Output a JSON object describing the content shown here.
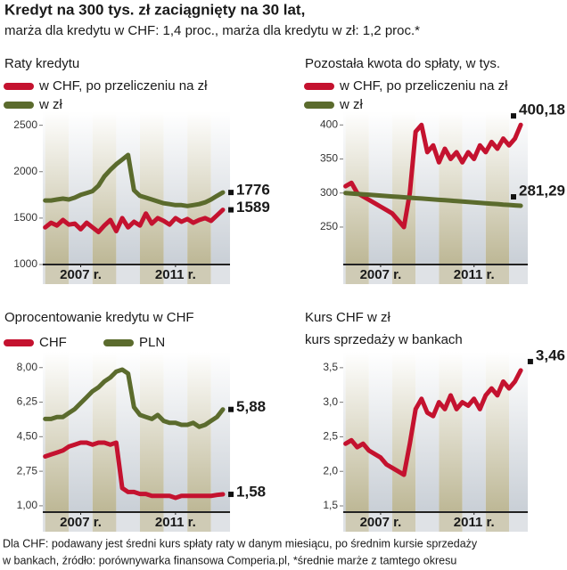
{
  "title": "Kredyt na 300 tys. zł zaciągnięty na 30 lat,",
  "subtitle": "marża dla kredytu w CHF: 1,4 proc., marża dla kredytu w zł: 1,2 proc.*",
  "footnote": [
    "Dla CHF: podawany jest średni kurs spłaty raty w danym miesiącu, po średnim kursie sprzedaży",
    "w bankach, źródło: porównywarka finansowa Comperia.pl, *średnie marże z tamtego okresu"
  ],
  "chart_data": [
    {
      "type": "line",
      "title": "Raty kredytu",
      "x": [
        2006,
        2006.25,
        2006.5,
        2006.75,
        2007,
        2007.25,
        2007.5,
        2007.75,
        2008,
        2008.25,
        2008.5,
        2008.75,
        2009,
        2009.25,
        2009.5,
        2009.75,
        2010,
        2010.25,
        2010.5,
        2010.75,
        2011,
        2011.25,
        2011.5,
        2011.75,
        2012,
        2012.25,
        2012.5,
        2012.75,
        2013,
        2013.25,
        2013.5
      ],
      "xlim": [
        2005.9,
        2013.8
      ],
      "xticks": [
        {
          "value": 2007.5,
          "label": "2007 r."
        },
        {
          "value": 2011.5,
          "label": "2011 r."
        }
      ],
      "ylim": [
        1000,
        2650
      ],
      "yticks": [
        1000,
        1500,
        2000,
        2500
      ],
      "series": [
        {
          "name": "w CHF, po przeliczeniu na zł",
          "color": "#c4122f",
          "values": [
            1400,
            1450,
            1420,
            1480,
            1430,
            1440,
            1380,
            1450,
            1400,
            1350,
            1420,
            1480,
            1360,
            1500,
            1400,
            1460,
            1420,
            1550,
            1440,
            1500,
            1470,
            1430,
            1500,
            1460,
            1490,
            1450,
            1480,
            1500,
            1470,
            1530,
            1589
          ]
        },
        {
          "name": "w zł",
          "color": "#5b6b2d",
          "values": [
            1690,
            1690,
            1700,
            1710,
            1700,
            1720,
            1750,
            1770,
            1790,
            1850,
            1950,
            2020,
            2080,
            2130,
            2180,
            1800,
            1740,
            1720,
            1700,
            1680,
            1660,
            1650,
            1640,
            1640,
            1630,
            1640,
            1650,
            1670,
            1700,
            1740,
            1776
          ]
        }
      ]
    },
    {
      "type": "line",
      "title": "Pozostała kwota do spłaty, w tys.",
      "x": [
        2006,
        2006.25,
        2006.5,
        2006.75,
        2007,
        2007.25,
        2007.5,
        2007.75,
        2008,
        2008.25,
        2008.5,
        2008.75,
        2009,
        2009.25,
        2009.5,
        2009.75,
        2010,
        2010.25,
        2010.5,
        2010.75,
        2011,
        2011.25,
        2011.5,
        2011.75,
        2012,
        2012.25,
        2012.5,
        2012.75,
        2013,
        2013.25,
        2013.5
      ],
      "xlim": [
        2005.9,
        2013.8
      ],
      "xticks": [
        {
          "value": 2007.5,
          "label": "2007 r."
        },
        {
          "value": 2011.5,
          "label": "2011 r."
        }
      ],
      "ylim": [
        195,
        420
      ],
      "yticks": [
        250,
        300,
        350,
        400
      ],
      "series": [
        {
          "name": "w CHF, po przeliczeniu na zł",
          "color": "#c4122f",
          "values": [
            310,
            315,
            300,
            295,
            290,
            285,
            280,
            275,
            270,
            260,
            250,
            300,
            390,
            400,
            360,
            370,
            345,
            365,
            350,
            360,
            345,
            360,
            350,
            370,
            360,
            375,
            365,
            380,
            370,
            380,
            400.18
          ],
          "value_labels": [
            null,
            null,
            null,
            null,
            null,
            null,
            null,
            null,
            null,
            null,
            null,
            null,
            null,
            null,
            null,
            null,
            null,
            null,
            null,
            null,
            null,
            null,
            null,
            null,
            null,
            null,
            null,
            null,
            null,
            null,
            "400,18"
          ]
        },
        {
          "name": "w zł",
          "color": "#5b6b2d",
          "values": [
            300,
            299.4,
            298.8,
            298.1,
            297.5,
            296.9,
            296.3,
            295.6,
            295,
            294.4,
            293.8,
            293.1,
            292.5,
            291.9,
            291.3,
            290.6,
            290,
            289.4,
            288.8,
            288.1,
            287.5,
            286.9,
            286.3,
            285.6,
            285,
            284.4,
            283.8,
            283.1,
            282.5,
            281.9,
            281.29
          ],
          "value_labels": [
            null,
            null,
            null,
            null,
            null,
            null,
            null,
            null,
            null,
            null,
            null,
            null,
            null,
            null,
            null,
            null,
            null,
            null,
            null,
            null,
            null,
            null,
            null,
            null,
            null,
            null,
            null,
            null,
            null,
            null,
            "281,29"
          ]
        }
      ]
    },
    {
      "type": "line",
      "title": "Oprocentowanie kredytu w CHF",
      "x": [
        2006,
        2006.25,
        2006.5,
        2006.75,
        2007,
        2007.25,
        2007.5,
        2007.75,
        2008,
        2008.25,
        2008.5,
        2008.75,
        2009,
        2009.25,
        2009.5,
        2009.75,
        2010,
        2010.25,
        2010.5,
        2010.75,
        2011,
        2011.25,
        2011.5,
        2011.75,
        2012,
        2012.25,
        2012.5,
        2012.75,
        2013,
        2013.25,
        2013.5
      ],
      "xlim": [
        2005.9,
        2013.8
      ],
      "xticks": [
        {
          "value": 2007.5,
          "label": "2007 r."
        },
        {
          "value": 2011.5,
          "label": "2011 r."
        }
      ],
      "ylim": [
        0.68,
        8.8
      ],
      "yticks": [
        {
          "value": 1,
          "label": "1,00"
        },
        {
          "value": 2.75,
          "label": "2,75"
        },
        {
          "value": 4.5,
          "label": "4,50"
        },
        {
          "value": 6.25,
          "label": "6,25"
        },
        {
          "value": 8,
          "label": "8,00"
        }
      ],
      "series": [
        {
          "name": "CHF",
          "color": "#c4122f",
          "values": [
            3.5,
            3.6,
            3.7,
            3.8,
            4.0,
            4.1,
            4.2,
            4.2,
            4.1,
            4.2,
            4.2,
            4.1,
            4.2,
            1.9,
            1.7,
            1.7,
            1.6,
            1.6,
            1.5,
            1.5,
            1.5,
            1.5,
            1.4,
            1.5,
            1.5,
            1.5,
            1.5,
            1.5,
            1.5,
            1.55,
            1.58
          ],
          "value_labels": [
            null,
            null,
            null,
            null,
            null,
            null,
            null,
            null,
            null,
            null,
            null,
            null,
            null,
            null,
            null,
            null,
            null,
            null,
            null,
            null,
            null,
            null,
            null,
            null,
            null,
            null,
            null,
            null,
            null,
            null,
            "1,58"
          ]
        },
        {
          "name": "PLN",
          "color": "#5b6b2d",
          "values": [
            5.4,
            5.4,
            5.5,
            5.5,
            5.7,
            5.9,
            6.2,
            6.5,
            6.8,
            7.0,
            7.3,
            7.5,
            7.8,
            7.9,
            7.7,
            6.0,
            5.6,
            5.5,
            5.4,
            5.6,
            5.3,
            5.2,
            5.2,
            5.1,
            5.1,
            5.2,
            5.0,
            5.1,
            5.3,
            5.5,
            5.88
          ],
          "value_labels": [
            null,
            null,
            null,
            null,
            null,
            null,
            null,
            null,
            null,
            null,
            null,
            null,
            null,
            null,
            null,
            null,
            null,
            null,
            null,
            null,
            null,
            null,
            null,
            null,
            null,
            null,
            null,
            null,
            null,
            null,
            "5,88"
          ]
        }
      ]
    },
    {
      "type": "line",
      "title": "Kurs CHF w zł",
      "subtitle": "kurs sprzedaży w bankach",
      "x": [
        2006,
        2006.25,
        2006.5,
        2006.75,
        2007,
        2007.25,
        2007.5,
        2007.75,
        2008,
        2008.25,
        2008.5,
        2008.75,
        2009,
        2009.25,
        2009.5,
        2009.75,
        2010,
        2010.25,
        2010.5,
        2010.75,
        2011,
        2011.25,
        2011.5,
        2011.75,
        2012,
        2012.25,
        2012.5,
        2012.75,
        2013,
        2013.25,
        2013.5
      ],
      "xlim": [
        2005.9,
        2013.8
      ],
      "xticks": [
        {
          "value": 2007.5,
          "label": "2007 r."
        },
        {
          "value": 2011.5,
          "label": "2011 r."
        }
      ],
      "ylim": [
        1.41,
        3.73
      ],
      "yticks": [
        {
          "value": 1.5,
          "label": "1,5"
        },
        {
          "value": 2,
          "label": "2,0"
        },
        {
          "value": 2.5,
          "label": "2,5"
        },
        {
          "value": 3,
          "label": "3,0"
        },
        {
          "value": 3.5,
          "label": "3,5"
        }
      ],
      "series": [
        {
          "color": "#c4122f",
          "values": [
            2.4,
            2.45,
            2.35,
            2.4,
            2.3,
            2.25,
            2.2,
            2.1,
            2.05,
            2.0,
            1.95,
            2.4,
            2.9,
            3.05,
            2.85,
            2.8,
            3.0,
            2.9,
            3.1,
            2.9,
            3.0,
            2.95,
            3.05,
            2.9,
            3.1,
            3.2,
            3.1,
            3.3,
            3.2,
            3.3,
            3.46
          ],
          "value_labels": [
            null,
            null,
            null,
            null,
            null,
            null,
            null,
            null,
            null,
            null,
            null,
            null,
            null,
            null,
            null,
            null,
            null,
            null,
            null,
            null,
            null,
            null,
            null,
            null,
            null,
            null,
            null,
            null,
            null,
            null,
            "3,46"
          ]
        }
      ]
    }
  ]
}
